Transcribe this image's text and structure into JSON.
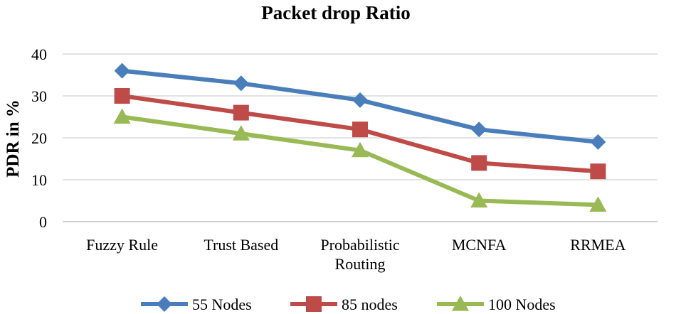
{
  "chart_data": {
    "type": "line",
    "title": "Packet drop Ratio",
    "xlabel": "",
    "ylabel": "PDR in %",
    "ylim": [
      0,
      40
    ],
    "yticks": [
      0,
      10,
      20,
      30,
      40
    ],
    "categories": [
      [
        "Fuzzy Rule"
      ],
      [
        "Trust Based"
      ],
      [
        "Probabilistic",
        "Routing"
      ],
      [
        "MCNFA"
      ],
      [
        "RRMEA"
      ]
    ],
    "series": [
      {
        "name": "55 Nodes",
        "color": "#4a7ebb",
        "marker": "diamond",
        "values": [
          36,
          33,
          29,
          22,
          19
        ]
      },
      {
        "name": "85 nodes",
        "color": "#be4b48",
        "marker": "square",
        "values": [
          30,
          26,
          22,
          14,
          12
        ]
      },
      {
        "name": "100 Nodes",
        "color": "#98b954",
        "marker": "triangle",
        "values": [
          25,
          21,
          17,
          5,
          4
        ]
      }
    ],
    "grid": true,
    "legend": "bottom"
  }
}
